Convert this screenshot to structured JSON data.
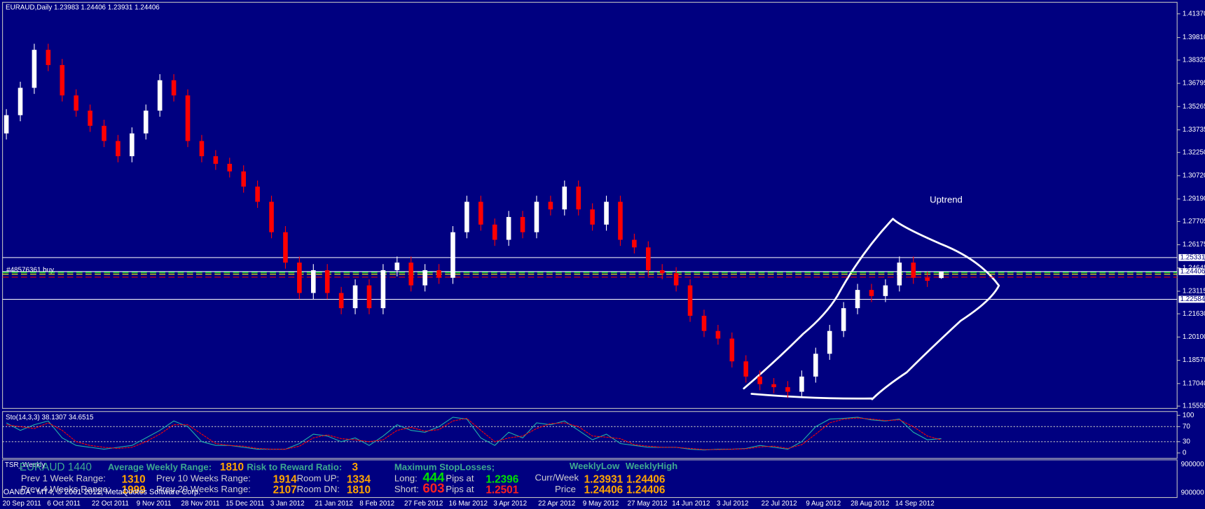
{
  "header": "EURAUD,Daily  1.23983 1.24406 1.23931 1.24406",
  "footer": "OANDA - MT4, © 2001-2012, MetaQuotes Software Corp.",
  "chart_data": {
    "type": "candlestick",
    "up_color": "#ffffff",
    "down_color": "#ff0000",
    "candles": [
      [
        1.335,
        1.351,
        1.331,
        1.347
      ],
      [
        1.347,
        1.369,
        1.343,
        1.365
      ],
      [
        1.365,
        1.394,
        1.361,
        1.39
      ],
      [
        1.39,
        1.394,
        1.376,
        1.38
      ],
      [
        1.38,
        1.384,
        1.356,
        1.36
      ],
      [
        1.36,
        1.364,
        1.346,
        1.35
      ],
      [
        1.35,
        1.354,
        1.336,
        1.34
      ],
      [
        1.34,
        1.344,
        1.326,
        1.33
      ],
      [
        1.33,
        1.334,
        1.316,
        1.32
      ],
      [
        1.32,
        1.339,
        1.316,
        1.335
      ],
      [
        1.335,
        1.354,
        1.331,
        1.35
      ],
      [
        1.35,
        1.374,
        1.346,
        1.37
      ],
      [
        1.37,
        1.374,
        1.356,
        1.36
      ],
      [
        1.36,
        1.364,
        1.326,
        1.33
      ],
      [
        1.33,
        1.334,
        1.316,
        1.32
      ],
      [
        1.32,
        1.324,
        1.311,
        1.315
      ],
      [
        1.315,
        1.319,
        1.306,
        1.31
      ],
      [
        1.31,
        1.314,
        1.296,
        1.3
      ],
      [
        1.3,
        1.304,
        1.286,
        1.29
      ],
      [
        1.29,
        1.294,
        1.266,
        1.27
      ],
      [
        1.27,
        1.274,
        1.246,
        1.25
      ],
      [
        1.25,
        1.254,
        1.226,
        1.23
      ],
      [
        1.23,
        1.249,
        1.226,
        1.245
      ],
      [
        1.245,
        1.249,
        1.226,
        1.23
      ],
      [
        1.23,
        1.234,
        1.216,
        1.22
      ],
      [
        1.22,
        1.239,
        1.216,
        1.235
      ],
      [
        1.235,
        1.239,
        1.216,
        1.22
      ],
      [
        1.22,
        1.249,
        1.216,
        1.245
      ],
      [
        1.245,
        1.254,
        1.241,
        1.25
      ],
      [
        1.25,
        1.254,
        1.231,
        1.235
      ],
      [
        1.235,
        1.249,
        1.231,
        1.245
      ],
      [
        1.245,
        1.249,
        1.236,
        1.24
      ],
      [
        1.24,
        1.274,
        1.236,
        1.27
      ],
      [
        1.27,
        1.294,
        1.266,
        1.29
      ],
      [
        1.29,
        1.294,
        1.271,
        1.275
      ],
      [
        1.275,
        1.279,
        1.261,
        1.265
      ],
      [
        1.265,
        1.284,
        1.261,
        1.28
      ],
      [
        1.28,
        1.284,
        1.266,
        1.27
      ],
      [
        1.27,
        1.294,
        1.266,
        1.29
      ],
      [
        1.29,
        1.294,
        1.281,
        1.285
      ],
      [
        1.285,
        1.304,
        1.281,
        1.3
      ],
      [
        1.3,
        1.304,
        1.281,
        1.285
      ],
      [
        1.285,
        1.289,
        1.271,
        1.275
      ],
      [
        1.275,
        1.294,
        1.271,
        1.29
      ],
      [
        1.29,
        1.294,
        1.261,
        1.265
      ],
      [
        1.265,
        1.269,
        1.256,
        1.26
      ],
      [
        1.26,
        1.264,
        1.241,
        1.245
      ],
      [
        1.245,
        1.249,
        1.239,
        1.243
      ],
      [
        1.243,
        1.247,
        1.231,
        1.235
      ],
      [
        1.235,
        1.239,
        1.211,
        1.215
      ],
      [
        1.215,
        1.219,
        1.201,
        1.205
      ],
      [
        1.205,
        1.209,
        1.196,
        1.2
      ],
      [
        1.2,
        1.204,
        1.181,
        1.185
      ],
      [
        1.185,
        1.189,
        1.171,
        1.175
      ],
      [
        1.175,
        1.179,
        1.166,
        1.17
      ],
      [
        1.17,
        1.174,
        1.164,
        1.168
      ],
      [
        1.168,
        1.172,
        1.161,
        1.165
      ],
      [
        1.165,
        1.179,
        1.161,
        1.175
      ],
      [
        1.175,
        1.194,
        1.171,
        1.19
      ],
      [
        1.19,
        1.209,
        1.186,
        1.205
      ],
      [
        1.205,
        1.224,
        1.201,
        1.22
      ],
      [
        1.22,
        1.236,
        1.216,
        1.232
      ],
      [
        1.232,
        1.236,
        1.224,
        1.228
      ],
      [
        1.228,
        1.239,
        1.224,
        1.235
      ],
      [
        1.235,
        1.254,
        1.231,
        1.25
      ],
      [
        1.25,
        1.254,
        1.236,
        1.24
      ],
      [
        1.24,
        1.244,
        1.234,
        1.238
      ],
      [
        1.23983,
        1.24406,
        1.23931,
        1.24406
      ]
    ],
    "ylim": [
      1.15403,
      1.42128
    ],
    "yticks": [
      {
        "value": 1.4137,
        "label": "1.41370"
      },
      {
        "value": 1.3981,
        "label": "1.39810"
      },
      1.38325,
      1.36795,
      1.35265,
      1.33735,
      {
        "value": 1.3225,
        "label": "1.32250"
      },
      {
        "value": 1.3072,
        "label": "1.30720"
      },
      {
        "value": 1.2919,
        "label": "1.29190"
      },
      1.27705,
      1.26175,
      1.24645,
      1.23115,
      {
        "value": 1.2163,
        "label": "1.21630"
      },
      {
        "value": 1.201,
        "label": "1.20100"
      },
      {
        "value": 1.1857,
        "label": "1.18570"
      },
      {
        "value": 1.1704,
        "label": "1.17040"
      },
      1.15555
    ],
    "x_labels": [
      "20 Sep 2011",
      "6 Oct 2011",
      "22 Oct 2011",
      "9 Nov 2011",
      "28 Nov 2011",
      "15 Dec 2011",
      "3 Jan 2012",
      "21 Jan 2012",
      "8 Feb 2012",
      "27 Feb 2012",
      "16 Mar 2012",
      "3 Apr 2012",
      "22 Apr 2012",
      "9 May 2012",
      "27 May 2012",
      "14 Jun 2012",
      "3 Jul 2012",
      "22 Jul 2012",
      "9 Aug 2012",
      "28 Aug 2012",
      "14 Sep 2012"
    ],
    "levels": [
      {
        "value": 1.25331,
        "color": "#ffffff"
      },
      {
        "value": 1.24406,
        "color": "#ffffff"
      },
      {
        "value": 1.22584,
        "color": "#ffffff"
      }
    ],
    "lines": [
      {
        "value": 1.2435,
        "color": "#00ff00"
      },
      {
        "value": 1.2424,
        "color": "#ffff00"
      },
      {
        "value": 1.2404,
        "color": "#ff0000"
      }
    ],
    "order_label": "#48576361 buy",
    "annotation": "Uptrend"
  },
  "stochastic": {
    "type": "line",
    "title": "Sto(14,3,3) 38.1307 34.6515",
    "ylim": [
      -14.3,
      110.2
    ],
    "yticks": [
      100,
      70,
      30,
      0
    ],
    "series": [
      {
        "color": "#20b2aa",
        "values": [
          80,
          60,
          75,
          85,
          40,
          20,
          15,
          10,
          15,
          20,
          40,
          60,
          85,
          70,
          30,
          20,
          20,
          15,
          10,
          10,
          10,
          25,
          50,
          45,
          30,
          40,
          20,
          45,
          75,
          60,
          55,
          70,
          95,
          90,
          40,
          20,
          55,
          40,
          80,
          75,
          85,
          60,
          35,
          50,
          25,
          20,
          15,
          15,
          15,
          10,
          8,
          10,
          10,
          12,
          20,
          15,
          10,
          30,
          70,
          90,
          92,
          95,
          88,
          85,
          90,
          55,
          35,
          38.1307
        ]
      },
      {
        "color": "#ff0000",
        "values": [
          75,
          70,
          65,
          80,
          60,
          30,
          20,
          15,
          12,
          15,
          30,
          50,
          75,
          75,
          50,
          25,
          20,
          18,
          12,
          10,
          10,
          18,
          40,
          48,
          38,
          35,
          30,
          35,
          60,
          68,
          58,
          62,
          85,
          92,
          60,
          30,
          40,
          45,
          65,
          78,
          80,
          70,
          45,
          42,
          38,
          22,
          18,
          15,
          15,
          12,
          9,
          9,
          10,
          11,
          16,
          18,
          12,
          22,
          50,
          80,
          90,
          93,
          90,
          86,
          88,
          70,
          45,
          34.6515
        ]
      }
    ]
  },
  "panel": {
    "name": "TSR_Weekly",
    "axis_top": "900000",
    "axis_bottom": "900000",
    "symbol": "EURAUD 1440",
    "avg_label": "Average Weekly Range:",
    "avg": "1810",
    "rr_label": "Risk to Reward Ratio:",
    "rr": "3",
    "max_label": "Maximum StopLosses;",
    "wlow": "WeeklyLow",
    "whigh": "WeeklyHigh",
    "p1_label": "Prev 1 Week Range:",
    "p1": "1310",
    "p10_label": "Prev 10 Weeks Range:",
    "p10": "1914",
    "up_label": "Room UP:",
    "up": "1334",
    "long_label": "Long:",
    "long": "444",
    "pips1": "Pips at",
    "long_at": "1.2396",
    "cw_label": "Curr/Week",
    "cw_low": "1.23931",
    "cw_high": "1.24406",
    "p4_label": "Prev 4 Weeks Range:",
    "p4": "1999",
    "p20_label": "Prev 20 Weeks Range:",
    "p20": "2107",
    "dn_label": "Room DN:",
    "dn": "1810",
    "short_label": "Short:",
    "short": "603",
    "pips2": "Pips at",
    "short_at": "1.2501",
    "pr_label": "Price",
    "pr_low": "1.24406",
    "pr_high": "1.24406"
  }
}
